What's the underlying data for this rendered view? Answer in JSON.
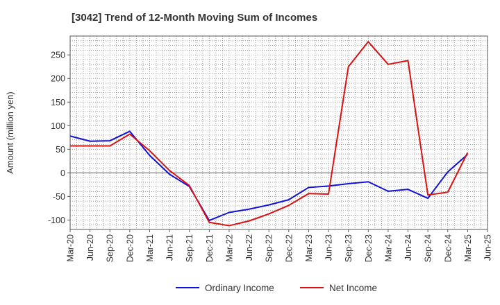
{
  "chart_data": {
    "type": "line",
    "title": "[3042]  Trend of 12-Month Moving Sum of Incomes",
    "xlabel": "",
    "ylabel": "Amount (million yen)",
    "ylim": [
      -120,
      290
    ],
    "yticks": [
      -100,
      -50,
      0,
      50,
      100,
      150,
      200,
      250
    ],
    "categories": [
      "Mar-20",
      "Jun-20",
      "Sep-20",
      "Dec-20",
      "Mar-21",
      "Jun-21",
      "Sep-21",
      "Dec-21",
      "Mar-22",
      "Jun-22",
      "Sep-22",
      "Dec-22",
      "Mar-23",
      "Jun-23",
      "Sep-23",
      "Dec-23",
      "Mar-24",
      "Jun-24",
      "Sep-24",
      "Dec-24",
      "Mar-25",
      "Jun-25"
    ],
    "grid": true,
    "legend_position": "bottom-center",
    "series": [
      {
        "name": "Ordinary Income",
        "color": "#1010dd",
        "values": [
          78,
          67,
          68,
          88,
          37,
          -3,
          -29,
          -101,
          -84,
          -77,
          -68,
          -57,
          -31,
          -28,
          -23,
          -19,
          -39,
          -35,
          -54,
          2,
          39,
          null
        ]
      },
      {
        "name": "Net Income",
        "color": "#dd1010",
        "values": [
          57,
          57,
          57,
          82,
          47,
          5,
          -27,
          -105,
          -112,
          -102,
          -87,
          -69,
          -44,
          -45,
          225,
          278,
          230,
          238,
          -47,
          -41,
          43,
          null
        ]
      }
    ]
  }
}
